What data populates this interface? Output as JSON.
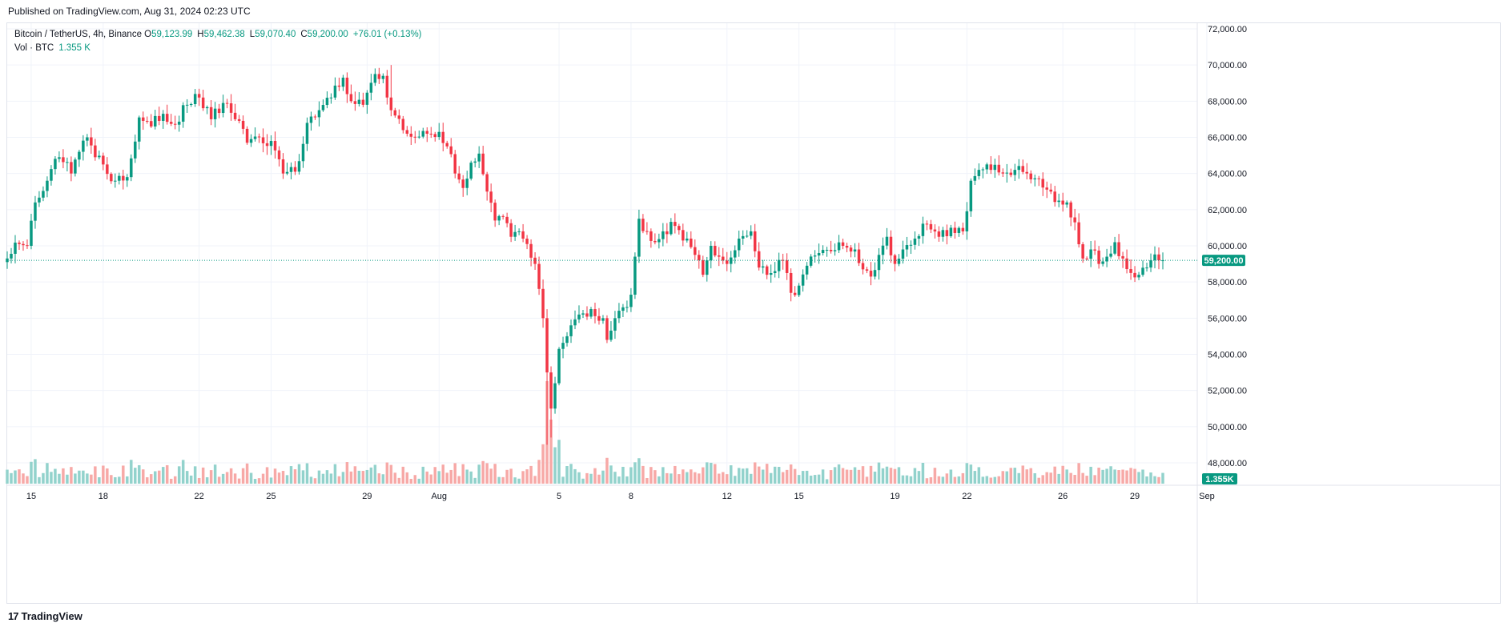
{
  "header": {
    "published": "Published on TradingView.com, Aug 31, 2024 02:23 UTC"
  },
  "legend": {
    "symbol": "Bitcoin / TetherUS, 4h, Binance",
    "o_label": "O",
    "o": "59,123.99",
    "h_label": "H",
    "h": "59,462.38",
    "l_label": "L",
    "l": "59,070.40",
    "c_label": "C",
    "c": "59,200.00",
    "change": "+76.01 (+0.13%)",
    "vol_label": "Vol · BTC",
    "vol": "1.355 K"
  },
  "footer": {
    "brand": "TradingView",
    "brand_mark": "17"
  },
  "colors": {
    "up": "#089981",
    "down": "#f23645",
    "up_vol": "#92d2cc",
    "down_vol": "#f7a9a7",
    "grid": "#f0f3fa",
    "axis_text": "#131722"
  },
  "chart_data": {
    "type": "candlestick",
    "ylim": [
      47000,
      72600
    ],
    "y_ticks": [
      48000,
      50000,
      52000,
      54000,
      56000,
      58000,
      60000,
      62000,
      64000,
      66000,
      68000,
      70000,
      72000
    ],
    "y_tick_labels": [
      "48,000.00",
      "50,000.00",
      "52,000.00",
      "54,000.00",
      "56,000.00",
      "58,000.00",
      "60,000.00",
      "62,000.00",
      "64,000.00",
      "66,000.00",
      "68,000.00",
      "70,000.00",
      "72,000.00"
    ],
    "x_tick_labels": [
      "15",
      "18",
      "22",
      "25",
      "29",
      "Aug",
      "5",
      "8",
      "12",
      "15",
      "19",
      "22",
      "26",
      "29",
      "Sep"
    ],
    "x_tick_index": [
      6,
      24,
      48,
      66,
      90,
      108,
      138,
      156,
      180,
      198,
      222,
      240,
      264,
      282,
      300
    ],
    "last_price": 59200,
    "last_price_label": "59,200.00",
    "last_volume_label": "1.355K",
    "anchors": [
      [
        0,
        59300
      ],
      [
        3,
        60100
      ],
      [
        5,
        60000
      ],
      [
        7,
        62400
      ],
      [
        10,
        63600
      ],
      [
        13,
        64900
      ],
      [
        16,
        64000
      ],
      [
        18,
        65200
      ],
      [
        20,
        66000
      ],
      [
        22,
        64900
      ],
      [
        24,
        64500
      ],
      [
        27,
        63600
      ],
      [
        30,
        63800
      ],
      [
        33,
        67100
      ],
      [
        36,
        66600
      ],
      [
        39,
        67300
      ],
      [
        42,
        66700
      ],
      [
        45,
        67800
      ],
      [
        48,
        68200
      ],
      [
        51,
        67000
      ],
      [
        54,
        67900
      ],
      [
        57,
        67000
      ],
      [
        60,
        65700
      ],
      [
        63,
        66000
      ],
      [
        66,
        65800
      ],
      [
        69,
        64000
      ],
      [
        72,
        64100
      ],
      [
        75,
        66800
      ],
      [
        78,
        67500
      ],
      [
        81,
        68200
      ],
      [
        84,
        69300
      ],
      [
        86,
        68000
      ],
      [
        89,
        67800
      ],
      [
        92,
        69500
      ],
      [
        94,
        69400
      ],
      [
        96,
        67500
      ],
      [
        99,
        66400
      ],
      [
        102,
        66000
      ],
      [
        105,
        66200
      ],
      [
        108,
        66300
      ],
      [
        110,
        65500
      ],
      [
        112,
        64000
      ],
      [
        114,
        63200
      ],
      [
        116,
        64600
      ],
      [
        118,
        65100
      ],
      [
        120,
        63000
      ],
      [
        122,
        61400
      ],
      [
        124,
        61600
      ],
      [
        126,
        60500
      ],
      [
        128,
        60800
      ],
      [
        130,
        60100
      ],
      [
        132,
        59000
      ],
      [
        134,
        56000
      ],
      [
        135,
        53000
      ],
      [
        136,
        51000
      ],
      [
        137,
        52400
      ],
      [
        138,
        54300
      ],
      [
        140,
        55000
      ],
      [
        143,
        56200
      ],
      [
        146,
        56500
      ],
      [
        149,
        56000
      ],
      [
        150,
        54800
      ],
      [
        152,
        56000
      ],
      [
        154,
        56600
      ],
      [
        156,
        57300
      ],
      [
        157,
        59400
      ],
      [
        158,
        61500
      ],
      [
        160,
        60800
      ],
      [
        162,
        60200
      ],
      [
        164,
        60800
      ],
      [
        167,
        61100
      ],
      [
        170,
        60400
      ],
      [
        172,
        59500
      ],
      [
        174,
        58400
      ],
      [
        176,
        60000
      ],
      [
        178,
        59400
      ],
      [
        180,
        59000
      ],
      [
        183,
        60400
      ],
      [
        186,
        60800
      ],
      [
        187,
        59700
      ],
      [
        188,
        58800
      ],
      [
        190,
        58400
      ],
      [
        192,
        58600
      ],
      [
        194,
        59200
      ],
      [
        196,
        57400
      ],
      [
        198,
        57800
      ],
      [
        200,
        58900
      ],
      [
        203,
        59600
      ],
      [
        206,
        59700
      ],
      [
        209,
        60000
      ],
      [
        212,
        59800
      ],
      [
        214,
        58700
      ],
      [
        216,
        58300
      ],
      [
        218,
        59500
      ],
      [
        220,
        60500
      ],
      [
        222,
        59000
      ],
      [
        224,
        59800
      ],
      [
        227,
        60400
      ],
      [
        230,
        61200
      ],
      [
        233,
        60500
      ],
      [
        236,
        61000
      ],
      [
        239,
        60800
      ],
      [
        241,
        63600
      ],
      [
        243,
        64200
      ],
      [
        246,
        64200
      ],
      [
        249,
        64000
      ],
      [
        252,
        64200
      ],
      [
        255,
        64000
      ],
      [
        258,
        63700
      ],
      [
        261,
        63000
      ],
      [
        263,
        62500
      ],
      [
        265,
        62400
      ],
      [
        267,
        61300
      ],
      [
        269,
        59300
      ],
      [
        271,
        59800
      ],
      [
        273,
        59000
      ],
      [
        275,
        59400
      ],
      [
        277,
        60200
      ],
      [
        279,
        59300
      ],
      [
        281,
        58500
      ],
      [
        283,
        58400
      ],
      [
        285,
        58800
      ],
      [
        286,
        59200
      ],
      [
        288,
        59200
      ]
    ]
  }
}
